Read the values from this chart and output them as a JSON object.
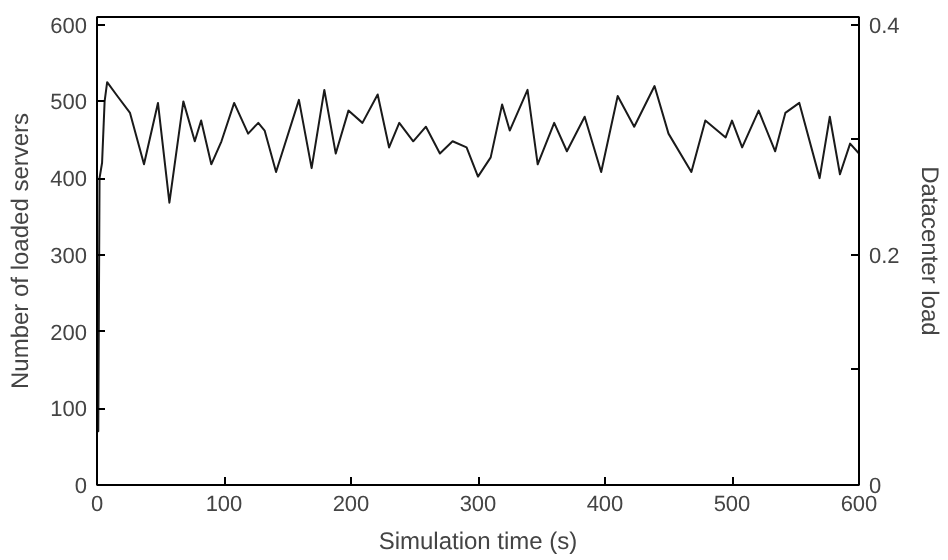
{
  "chart_data": {
    "type": "line",
    "xlabel": "Simulation time (s)",
    "ylabel": "Number of loaded servers",
    "y2label": "Datacenter load",
    "xlim": [
      0,
      600
    ],
    "xticks": [
      0,
      100,
      200,
      300,
      400,
      500,
      600
    ],
    "ylim": [
      0,
      610
    ],
    "yticks": [
      0,
      100,
      200,
      300,
      400,
      500,
      600
    ],
    "y2lim": [
      0,
      0.4067
    ],
    "y2ticks": [
      0,
      {
        "value": 0.1,
        "label": null
      },
      0.2,
      {
        "value": 0.3,
        "label": null
      },
      0.4
    ],
    "grid": false,
    "marker": "none",
    "line_style": "solid",
    "series": [
      {
        "color": "#1a1a1a",
        "x": [
          0,
          0.5,
          1,
          2,
          4,
          6,
          8,
          16,
          26,
          37,
          48,
          57,
          68,
          77,
          82,
          90,
          98,
          108,
          119,
          127,
          132,
          141,
          159,
          169,
          179,
          188,
          198,
          209,
          221,
          230,
          238,
          249,
          259,
          270,
          280,
          291,
          300,
          310,
          319,
          325,
          339,
          347,
          360,
          370,
          384,
          397,
          410,
          423,
          439,
          450,
          468,
          479,
          495,
          500,
          508,
          521,
          534,
          542,
          553,
          569,
          577,
          585,
          593,
          600
        ],
        "values": [
          80,
          140,
          70,
          400,
          420,
          500,
          525,
          507,
          485,
          418,
          498,
          368,
          500,
          448,
          475,
          418,
          448,
          498,
          458,
          472,
          462,
          408,
          502,
          413,
          515,
          432,
          488,
          472,
          509,
          440,
          472,
          448,
          467,
          432,
          448,
          440,
          402,
          427,
          496,
          462,
          515,
          418,
          472,
          435,
          480,
          408,
          507,
          467,
          520,
          458,
          408,
          475,
          453,
          475,
          440,
          488,
          435,
          485,
          498,
          400,
          480,
          405,
          445,
          432
        ]
      }
    ]
  }
}
